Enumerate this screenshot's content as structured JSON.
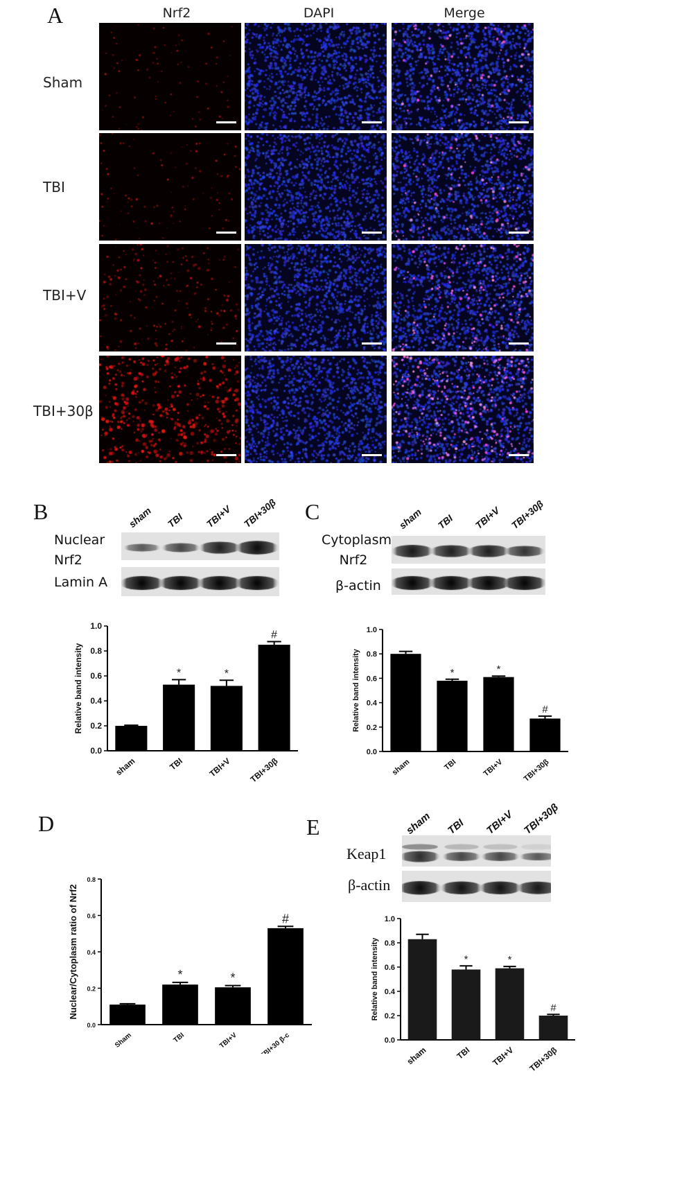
{
  "panel_labels": [
    "A",
    "B",
    "C",
    "D",
    "E"
  ],
  "panel_a": {
    "columns": [
      "Nrf2",
      "DAPI",
      "Merge"
    ],
    "rows": [
      "Sham",
      "TBI",
      "TBI+V",
      "TBI+30β"
    ],
    "nrf2_red_level": [
      0.08,
      0.12,
      0.28,
      0.75
    ]
  },
  "blot_b": {
    "lanes": [
      "sham",
      "TBI",
      "TBI+V",
      "TBI+30β"
    ],
    "band_labels": [
      "Nuclear\nNrf2",
      "Lamin A"
    ]
  },
  "blot_c": {
    "lanes": [
      "sham",
      "TBI",
      "TBI+V",
      "TBI+30β"
    ],
    "band_labels": [
      "Cytoplasm\nNrf2",
      "β-actin"
    ]
  },
  "blot_e": {
    "lanes": [
      "sham",
      "TBI",
      "TBI+V",
      "TBI+30β"
    ],
    "band_labels": [
      "Keap1",
      "β-actin"
    ]
  },
  "chart_data": [
    {
      "panel": "B",
      "type": "bar",
      "categories": [
        "sham",
        "TBI",
        "TBI+V",
        "TBI+30β"
      ],
      "values": [
        0.2,
        0.53,
        0.52,
        0.85
      ],
      "errors": [
        0.005,
        0.04,
        0.045,
        0.025
      ],
      "annotations": [
        "",
        "*",
        "*",
        "#"
      ],
      "ylabel": "Relative band intensity",
      "ylim": [
        0,
        1.0
      ],
      "yticks": [
        "0.0",
        "0.2",
        "0.4",
        "0.6",
        "0.8",
        "1.0"
      ],
      "color": "#000000"
    },
    {
      "panel": "C",
      "type": "bar",
      "categories": [
        "sham",
        "TBI",
        "TBI+V",
        "TBI+30β"
      ],
      "values": [
        0.8,
        0.58,
        0.61,
        0.27
      ],
      "errors": [
        0.02,
        0.012,
        0.008,
        0.02
      ],
      "annotations": [
        "",
        "*",
        "*",
        "#"
      ],
      "ylabel": "Relative band intensity",
      "ylim": [
        0,
        1.0
      ],
      "yticks": [
        "0.0",
        "0.2",
        "0.4",
        "0.6",
        "0.8",
        "1.0"
      ],
      "color": "#000000"
    },
    {
      "panel": "D",
      "type": "bar",
      "categories": [
        "Sham",
        "TBI",
        "TBI+V",
        "TBI+30 β-c"
      ],
      "values": [
        0.11,
        0.22,
        0.205,
        0.53
      ],
      "errors": [
        0.005,
        0.012,
        0.01,
        0.01
      ],
      "annotations": [
        "",
        "*",
        "*",
        "#"
      ],
      "ylabel": "Nuclear/Cytoplasm ratio of Nrf2",
      "ylim": [
        0,
        0.8
      ],
      "yticks": [
        "0.0",
        "0.2",
        "0.4",
        "0.6",
        "0.8"
      ],
      "color": "#000000"
    },
    {
      "panel": "E",
      "type": "bar",
      "categories": [
        "sham",
        "TBI",
        "TBI+V",
        "TBI+30β"
      ],
      "values": [
        0.83,
        0.58,
        0.59,
        0.2
      ],
      "errors": [
        0.04,
        0.03,
        0.015,
        0.01
      ],
      "annotations": [
        "",
        "*",
        "*",
        "#"
      ],
      "ylabel": "Relative band intensity",
      "ylim": [
        0,
        1.0
      ],
      "yticks": [
        "0.0",
        "0.2",
        "0.4",
        "0.6",
        "0.8",
        "1.0"
      ],
      "color": "#1a1a1a"
    }
  ]
}
